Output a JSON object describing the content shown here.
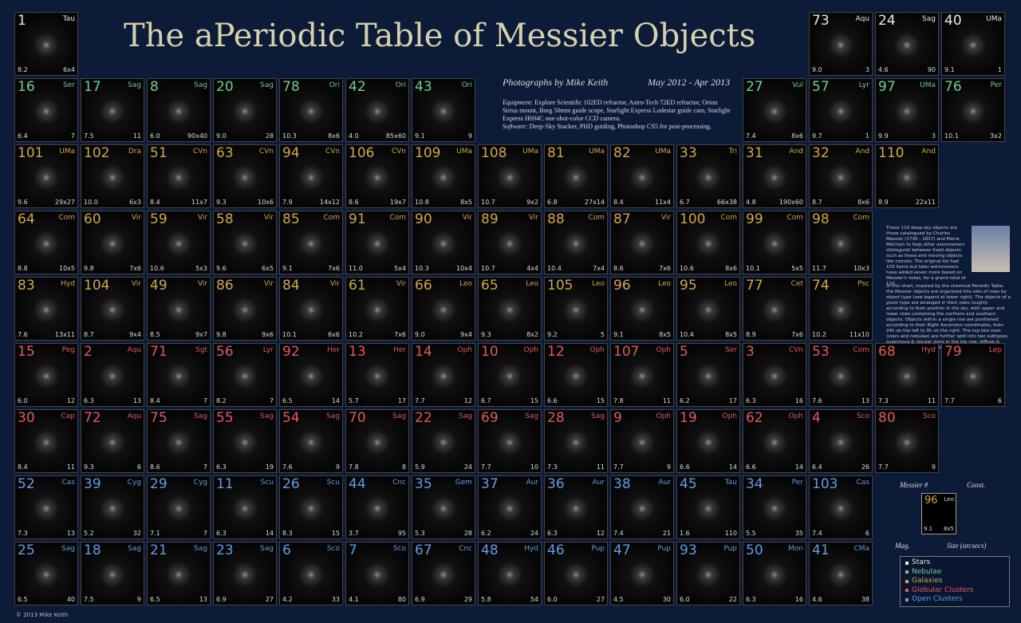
{
  "header": {
    "title": "The aPeriodic Table of Messier Objects",
    "credit": "Photographs by Mike Keith",
    "dates": "May 2012 - Apr 2013"
  },
  "equipment": {
    "label": "Equipment:",
    "text": "Explore Scientific 102ED refractor, Astro-Tech 72ED refractor, Orion Sirius mount, Borg 50mm guide scope, Starlight Express Lodestar guide cam, Starlight Express H694C one-shot-color CCD camera.",
    "software_label": "Software:",
    "software": "Deep-Sky Stacker, PHD guiding, Photoshop CS5 for post-processing."
  },
  "description": [
    "These 110 deep-sky objects are those catalogued by Charles Messier (1730 - 1817) and Pierre Méchain to help other astronomers distinguish between fixed objects such as these and moving objects like comets. The original list had 103 items but later astronomers have added seven more based on Messier's notes, for a grand total of 110.",
    "In this chart, inspired by the chemical Periodic Table, the Messier objects are organized into sets of rows by object type (see legend at lower right). The objects of a given type are arranged in their rows roughly according to their position in the sky, with upper and lower rows containing the northern and southern objects. Objects within a single row are positioned according to their Right Ascension coordinates, from 24h on the left to 0h on the right. The top two rows (stars and nebulae) are further split into two subtypes: supernova & regular stars in the top row, diffuse & planetary nebulae in the second row."
  ],
  "key": {
    "messier": "Messier #",
    "const": "Const.",
    "number": "96",
    "con": "Leo",
    "mag": "9.1",
    "size": "8x5",
    "mag_label": "Mag.",
    "size_label": "Size (arcsecs)"
  },
  "legend": [
    {
      "name": "Stars",
      "color": "#e8e8e8"
    },
    {
      "name": "Nebulae",
      "color": "#6fcf8f"
    },
    {
      "name": "Galaxies",
      "color": "#d0a84a"
    },
    {
      "name": "Globular Clusters",
      "color": "#e25a5a"
    },
    {
      "name": "Open Clusters",
      "color": "#5f9fe6"
    }
  ],
  "footer": "© 2013  Mike Keith",
  "rows": [
    {
      "color": "#e8e8e8",
      "cells": [
        [
          "1",
          "Tau",
          "8.2",
          "6x4"
        ],
        [
          "73",
          "Aqu",
          "9.0",
          "3"
        ],
        [
          "24",
          "Sag",
          "4.6",
          "90"
        ],
        [
          "40",
          "UMa",
          "9.1",
          "1"
        ]
      ]
    },
    {
      "color": "#6fcf8f",
      "cells": [
        [
          "16",
          "Ser",
          "6.4",
          "7"
        ],
        [
          "17",
          "Sag",
          "7.5",
          "11"
        ],
        [
          "8",
          "Sag",
          "6.0",
          "90x40"
        ],
        [
          "20",
          "Sag",
          "9.0",
          "28"
        ],
        [
          "78",
          "Ori",
          "10.3",
          "8x6"
        ],
        [
          "42",
          "Ori",
          "4.0",
          "85x60"
        ],
        [
          "43",
          "Ori",
          "9.1",
          "9"
        ],
        [
          "27",
          "Vul",
          "7.4",
          "8x6"
        ],
        [
          "57",
          "Lyr",
          "9.7",
          "1"
        ],
        [
          "97",
          "UMa",
          "9.9",
          "3"
        ],
        [
          "76",
          "Per",
          "10.1",
          "3x2"
        ]
      ]
    },
    {
      "color": "#d0a84a",
      "cells": [
        [
          "101",
          "UMa",
          "9.6",
          "29x27"
        ],
        [
          "102",
          "Dra",
          "10.0",
          "6x3"
        ],
        [
          "51",
          "CVn",
          "8.4",
          "11x7"
        ],
        [
          "63",
          "CVn",
          "9.3",
          "10x6"
        ],
        [
          "94",
          "CVn",
          "7.9",
          "14x12"
        ],
        [
          "106",
          "CVn",
          "8.6",
          "19x7"
        ],
        [
          "109",
          "UMa",
          "10.8",
          "8x5"
        ],
        [
          "108",
          "UMa",
          "10.7",
          "9x2"
        ],
        [
          "81",
          "UMa",
          "6.8",
          "27x14"
        ],
        [
          "82",
          "UMa",
          "8.4",
          "11x4"
        ],
        [
          "33",
          "Tri",
          "6.7",
          "66x38"
        ],
        [
          "31",
          "And",
          "4.8",
          "190x60"
        ],
        [
          "32",
          "And",
          "8.7",
          "8x6"
        ],
        [
          "110",
          "And",
          "8.9",
          "22x11"
        ]
      ]
    },
    {
      "color": "#d0a84a",
      "cells": [
        [
          "64",
          "Com",
          "8.8",
          "10x5"
        ],
        [
          "60",
          "Vir",
          "9.8",
          "7x6"
        ],
        [
          "59",
          "Vir",
          "10.6",
          "5x3"
        ],
        [
          "58",
          "Vir",
          "9.6",
          "6x5"
        ],
        [
          "85",
          "Com",
          "9.1",
          "7x6"
        ],
        [
          "91",
          "Com",
          "11.0",
          "5x4"
        ],
        [
          "90",
          "Vir",
          "10.3",
          "10x4"
        ],
        [
          "89",
          "Vir",
          "10.7",
          "4x4"
        ],
        [
          "88",
          "Com",
          "10.4",
          "7x4"
        ],
        [
          "87",
          "Vir",
          "8.6",
          "7x6"
        ],
        [
          "100",
          "Com",
          "10.6",
          "8x6"
        ],
        [
          "99",
          "Com",
          "10.1",
          "5x5"
        ],
        [
          "98",
          "Com",
          "11.7",
          "10x3"
        ]
      ]
    },
    {
      "color": "#d0a84a",
      "cells": [
        [
          "83",
          "Hyd",
          "7.6",
          "13x11"
        ],
        [
          "104",
          "Vir",
          "8.7",
          "9x4"
        ],
        [
          "49",
          "Vir",
          "8.5",
          "9x7"
        ],
        [
          "86",
          "Vir",
          "9.8",
          "9x6"
        ],
        [
          "84",
          "Vir",
          "10.1",
          "6x6"
        ],
        [
          "61",
          "Vir",
          "10.2",
          "7x6"
        ],
        [
          "66",
          "Leo",
          "9.0",
          "9x4"
        ],
        [
          "65",
          "Leo",
          "9.3",
          "8x2"
        ],
        [
          "105",
          "Leo",
          "9.2",
          "5"
        ],
        [
          "96",
          "Leo",
          "9.1",
          "8x5"
        ],
        [
          "95",
          "Leo",
          "10.4",
          "8x5"
        ],
        [
          "77",
          "Cet",
          "8.9",
          "7x6"
        ],
        [
          "74",
          "Psc",
          "10.2",
          "11x10"
        ]
      ]
    },
    {
      "color": "#e25a5a",
      "cells": [
        [
          "15",
          "Peg",
          "6.0",
          "12"
        ],
        [
          "2",
          "Aqu",
          "6.3",
          "13"
        ],
        [
          "71",
          "Sgt",
          "8.4",
          "7"
        ],
        [
          "56",
          "Lyr",
          "8.2",
          "7"
        ],
        [
          "92",
          "Her",
          "6.5",
          "14"
        ],
        [
          "13",
          "Her",
          "5.7",
          "17"
        ],
        [
          "14",
          "Oph",
          "7.7",
          "12"
        ],
        [
          "10",
          "Oph",
          "6.7",
          "15"
        ],
        [
          "12",
          "Oph",
          "6.6",
          "15"
        ],
        [
          "107",
          "Oph",
          "7.8",
          "11"
        ],
        [
          "5",
          "Ser",
          "6.2",
          "17"
        ],
        [
          "3",
          "CVn",
          "6.3",
          "16"
        ],
        [
          "53",
          "Com",
          "7.6",
          "13"
        ],
        [
          "68",
          "Hyd",
          "7.3",
          "11"
        ],
        [
          "79",
          "Lep",
          "7.7",
          "6"
        ]
      ]
    },
    {
      "color": "#e25a5a",
      "cells": [
        [
          "30",
          "Cap",
          "8.4",
          "11"
        ],
        [
          "72",
          "Aqu",
          "9.3",
          "6"
        ],
        [
          "75",
          "Sag",
          "8.6",
          "7"
        ],
        [
          "55",
          "Sag",
          "6.3",
          "19"
        ],
        [
          "54",
          "Sag",
          "7.6",
          "9"
        ],
        [
          "70",
          "Sag",
          "7.8",
          "8"
        ],
        [
          "22",
          "Sag",
          "5.9",
          "24"
        ],
        [
          "69",
          "Sag",
          "7.7",
          "10"
        ],
        [
          "28",
          "Sag",
          "7.3",
          "11"
        ],
        [
          "9",
          "Oph",
          "7.7",
          "9"
        ],
        [
          "19",
          "Oph",
          "6.6",
          "14"
        ],
        [
          "62",
          "Oph",
          "6.6",
          "14"
        ],
        [
          "4",
          "Sco",
          "6.4",
          "26"
        ],
        [
          "80",
          "Sco",
          "7.7",
          "9"
        ]
      ]
    },
    {
      "color": "#5f9fe6",
      "cells": [
        [
          "52",
          "Cas",
          "7.3",
          "13"
        ],
        [
          "39",
          "Cyg",
          "5.2",
          "32"
        ],
        [
          "29",
          "Cyg",
          "7.1",
          "7"
        ],
        [
          "11",
          "Scu",
          "6.3",
          "14"
        ],
        [
          "26",
          "Scu",
          "8.3",
          "15"
        ],
        [
          "44",
          "Cnc",
          "3.7",
          "95"
        ],
        [
          "35",
          "Gem",
          "5.3",
          "28"
        ],
        [
          "37",
          "Aur",
          "6.2",
          "24"
        ],
        [
          "36",
          "Aur",
          "6.3",
          "12"
        ],
        [
          "38",
          "Aur",
          "7.4",
          "21"
        ],
        [
          "45",
          "Tau",
          "1.6",
          "110"
        ],
        [
          "34",
          "Per",
          "5.5",
          "35"
        ],
        [
          "103",
          "Cas",
          "7.4",
          "6"
        ]
      ]
    },
    {
      "color": "#5f9fe6",
      "cells": [
        [
          "25",
          "Sag",
          "6.5",
          "40"
        ],
        [
          "18",
          "Sag",
          "7.5",
          "9"
        ],
        [
          "21",
          "Sag",
          "6.5",
          "13"
        ],
        [
          "23",
          "Sag",
          "6.9",
          "27"
        ],
        [
          "6",
          "Sco",
          "4.2",
          "33"
        ],
        [
          "7",
          "Sco",
          "4.1",
          "80"
        ],
        [
          "67",
          "Cnc",
          "6.9",
          "29"
        ],
        [
          "48",
          "Hyd",
          "5.8",
          "54"
        ],
        [
          "46",
          "Pup",
          "6.0",
          "27"
        ],
        [
          "47",
          "Pup",
          "4.5",
          "30"
        ],
        [
          "93",
          "Pup",
          "6.0",
          "22"
        ],
        [
          "50",
          "Mon",
          "6.3",
          "16"
        ],
        [
          "41",
          "CMa",
          "4.6",
          "38"
        ]
      ]
    }
  ]
}
